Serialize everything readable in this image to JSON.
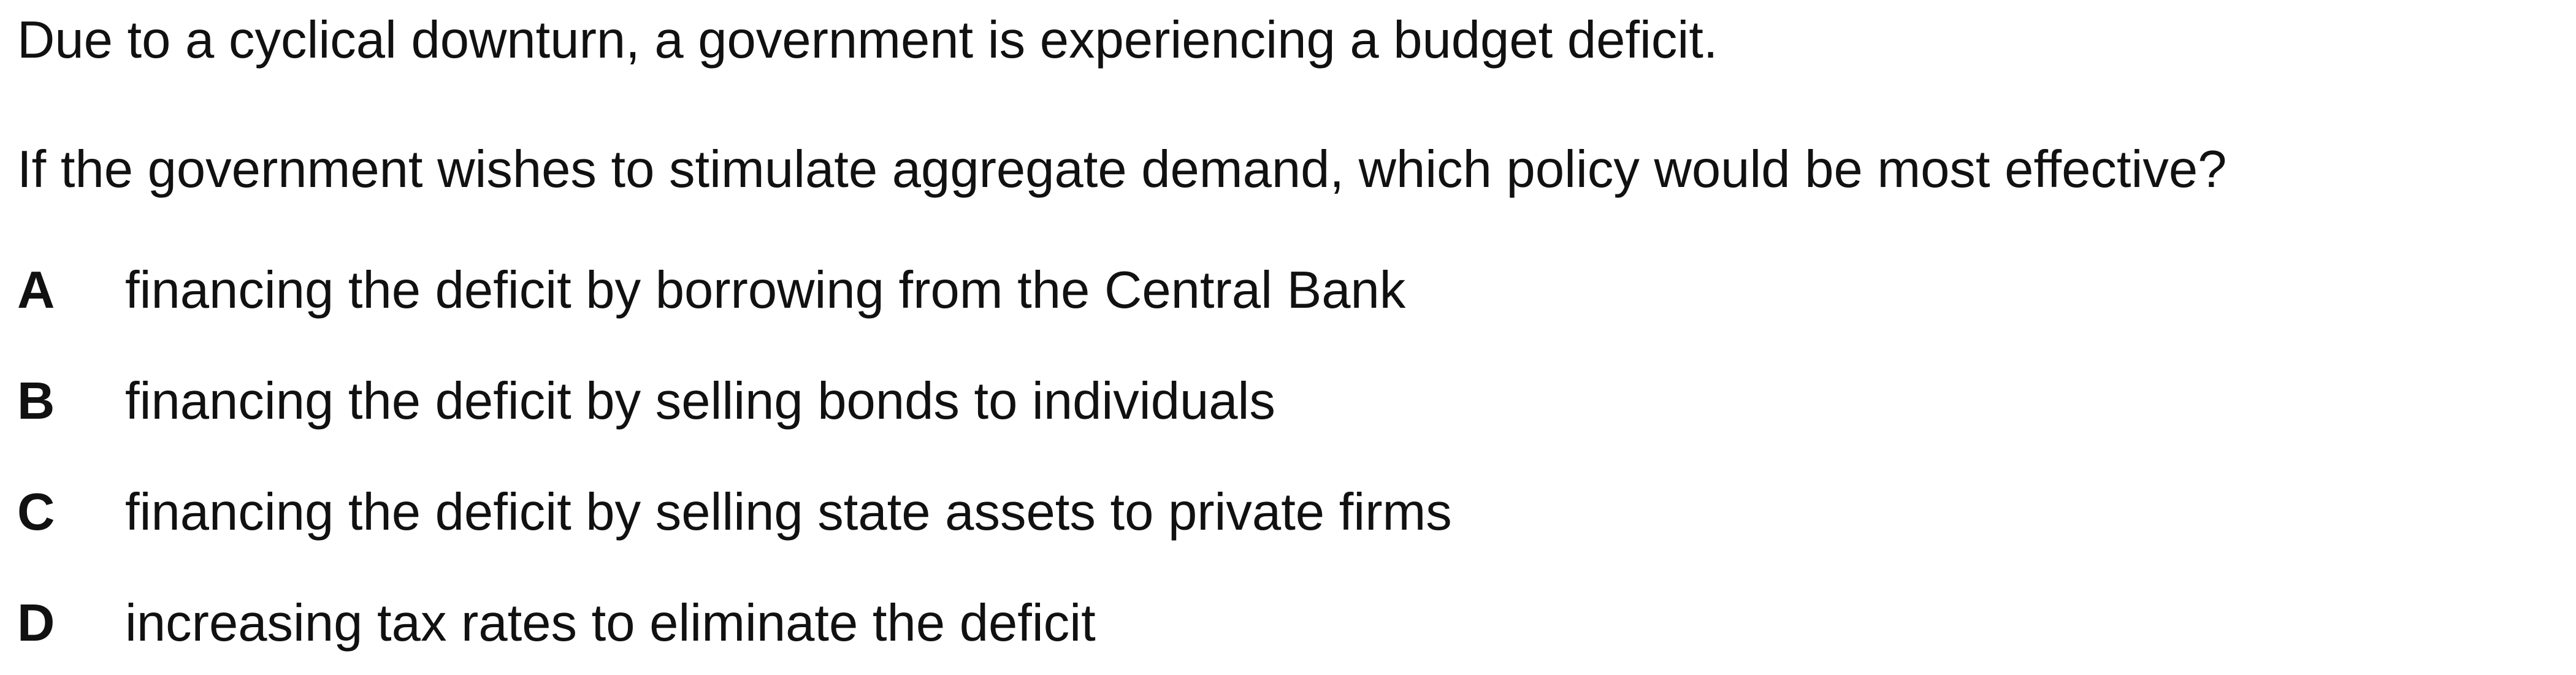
{
  "intro": "Due to a cyclical downturn, a government is experiencing a budget deficit.",
  "question": "If the government wishes to stimulate aggregate demand, which policy would be most effective?",
  "options": [
    {
      "letter": "A",
      "text": "financing the deficit by borrowing from the Central Bank"
    },
    {
      "letter": "B",
      "text": "financing the deficit by selling bonds to individuals"
    },
    {
      "letter": "C",
      "text": "financing the deficit by selling state assets to private firms"
    },
    {
      "letter": "D",
      "text": "increasing tax rates to eliminate the deficit"
    }
  ]
}
